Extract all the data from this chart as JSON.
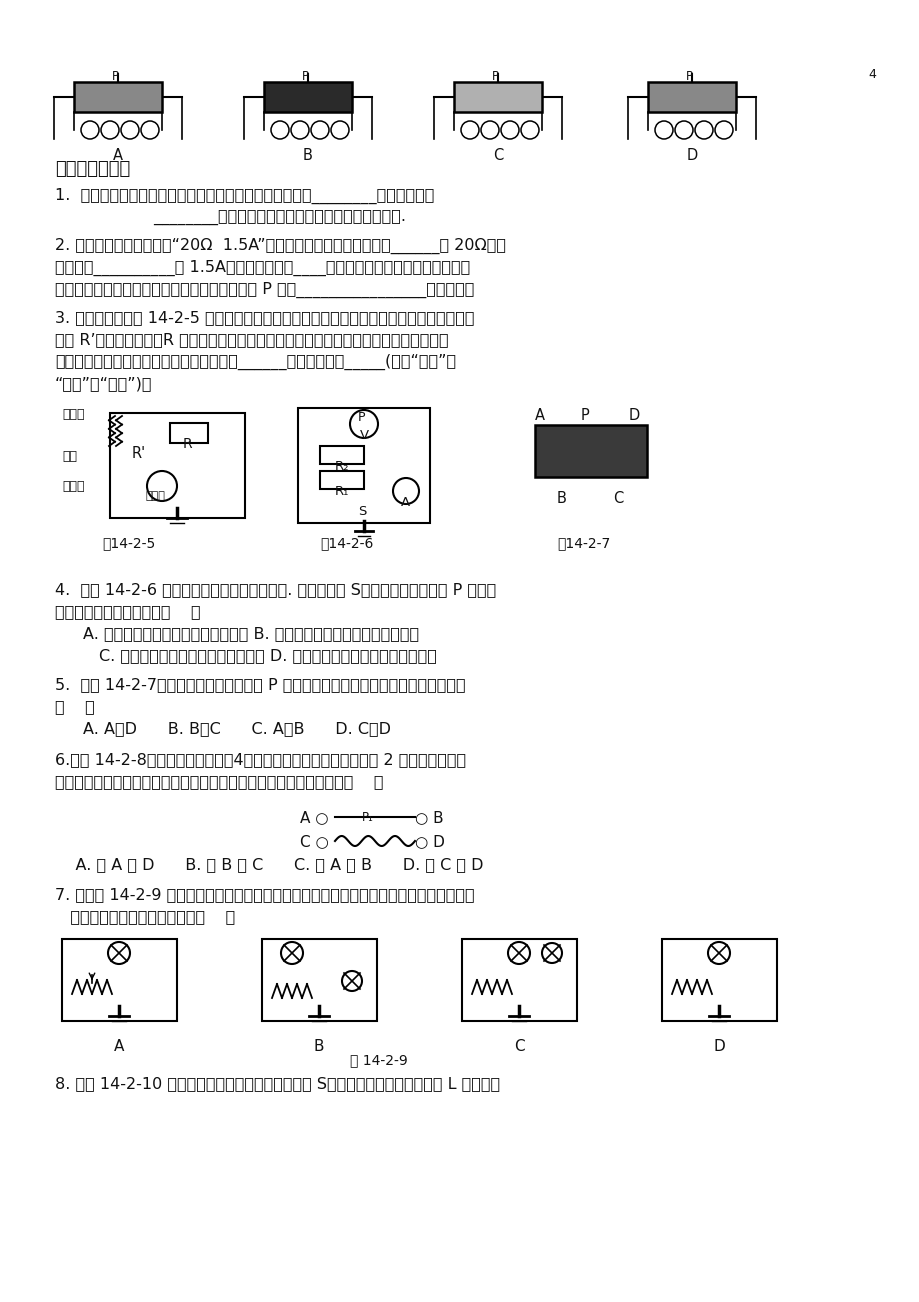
{
  "bg": "#ffffff",
  "FM": 11.5,
  "ML": 55,
  "title": "五、达标检测：",
  "q1a": "1.  收音机的音量控制旋鈕是一个电位器，它实际上是一个________，它通过改变",
  "q1b": "________的大小来改变电流，从而改变了声音的大小.",
  "q2a": "2. 一个滑动变阻器上标有“20Ω  1.5A”的字样，它表示这个变阻器的______是 20Ω，允",
  "q2b": "许通过的__________是 1.5A。滑动变阻器应____联在需要调节电流大小的电路中，",
  "q2c": "连入电路的滑动变阻器在电路闭合前，应将滑片 P 放在________________的位置上。",
  "q3a": "3. 小明设计了如图 14-2-5 所示的压力测量仪，可以反映弹簧上方金属片受到压力的大小。",
  "q3b": "其中 R’是滑动变阻器，R 是定值电阻，电源电压恒定不变，压力表实际上是一个电压表。",
  "q3c": "当金属片受到的压力增大时，变阻器的阻値______，压力表示数_____(选填“变大”、",
  "q3d": "“变小”或“不变”)。",
  "q4a": "4.  如图 14-2-6 所示的电路中，电源电压不变. 当闭合开关 S，滑动变阻器的滑片 P 向右移",
  "q4b": "动时，下列判断正确的是（    ）",
  "q4c": "A. 电流表示数变大，电压表示数变小 B. 电流表示数变小，电压表示数不变",
  "q4d": "C. 电流表示数变小，电压表示数变大 D. 电流表示数变大，电压表示数不变",
  "q5a": "5.  如图 14-2-7，要使滑动变阻器的滑片 P 向右移动时，电阻变大，应选择的接线柱是",
  "q5b": "（    ）",
  "q5c": "A. A、D      B. B、C      C. A、B      D. C、D",
  "q6a": "6.如图 14-2-8所示，滑动变阻器有4个接线柱，使用时只需接入其中 2 个，因此有几种",
  "q6b": "接法，在这些接法中，不能改变电阻大小并且可能损坏仪器的接法是（    ）",
  "q6c": "    A. 接 A 和 D      B. 接 B 和 C      C. 接 A 和 B      D. 接 C 和 D",
  "q7a": "7. 电路图 14-2-9 中，同种元件规格相同。当开关闭合后，能利用滑动变阻器改变灯泡的亮",
  "q7b": "   度，又不会造成事故的电路是（    ）",
  "q8": "8. 如图 14-2-10 电路中，电源电压恒定。闭合开关 S，调节滑动变阻器使小灯泡 L 正常发光"
}
